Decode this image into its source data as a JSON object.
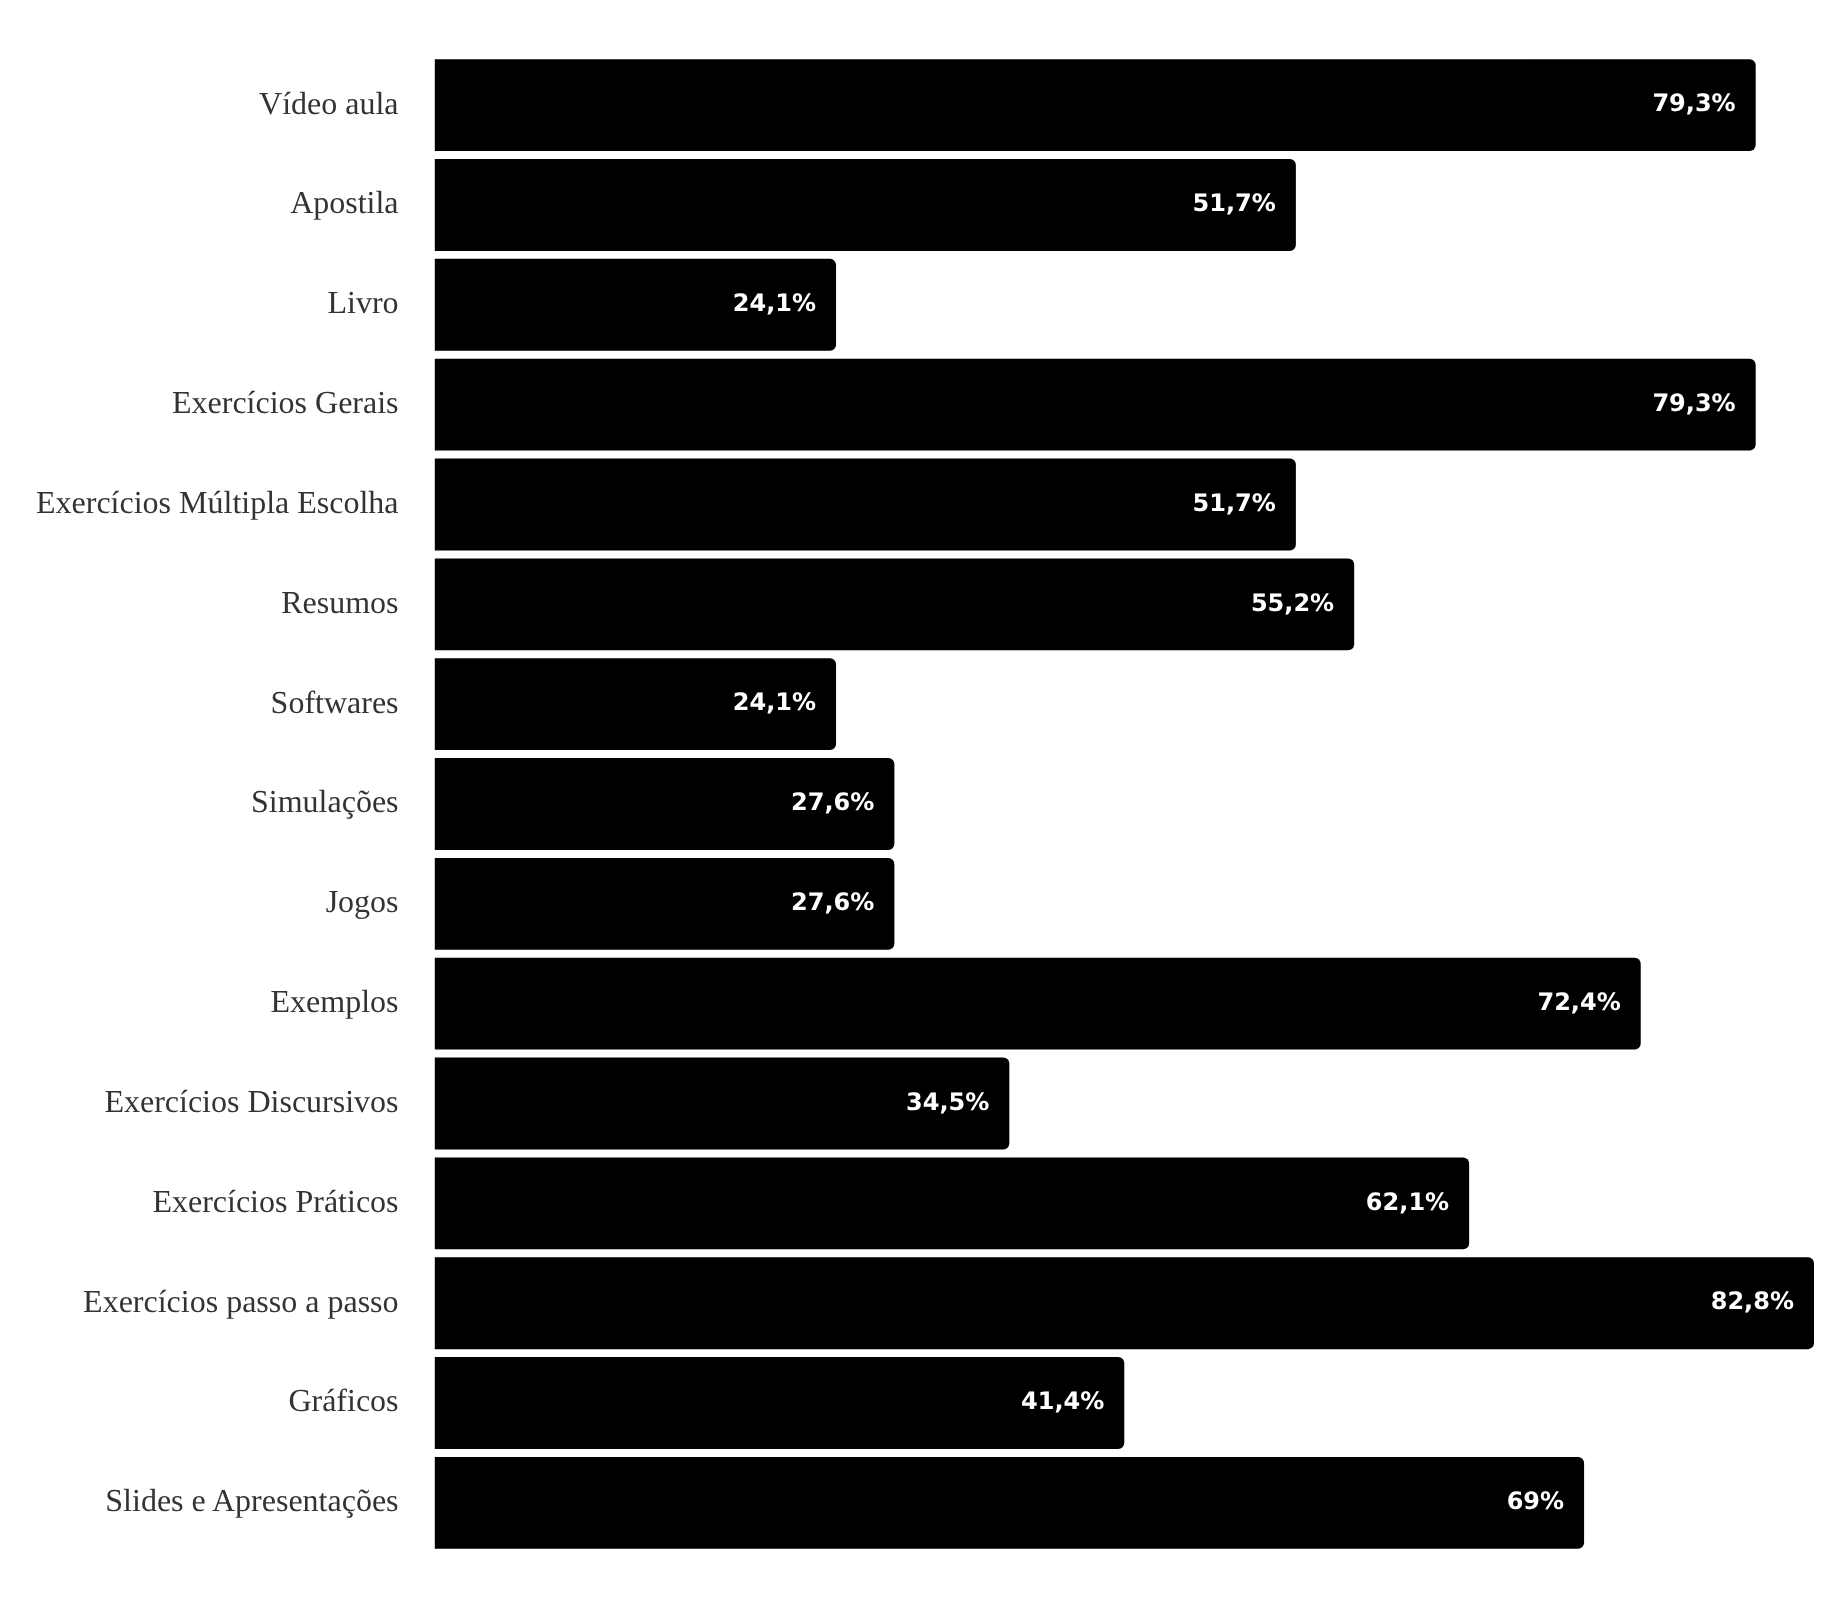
{
  "chart_data": {
    "type": "bar",
    "orientation": "horizontal",
    "categories": [
      "Vídeo aula",
      "Apostila",
      "Livro",
      "Exercícios Gerais",
      "Exercícios Múltipla Escolha",
      "Resumos",
      "Softwares",
      "Simulações",
      "Jogos",
      "Exemplos",
      "Exercícios Discursivos",
      "Exercícios Práticos",
      "Exercícios passo a passo",
      "Gráficos",
      "Slides e Apresentações"
    ],
    "values": [
      79.3,
      51.7,
      24.1,
      79.3,
      51.7,
      55.2,
      24.1,
      27.6,
      27.6,
      72.4,
      34.5,
      62.1,
      82.8,
      41.4,
      69
    ],
    "value_labels": [
      "79,3%",
      "51,7%",
      "24,1%",
      "79,3%",
      "51,7%",
      "55,2%",
      "24,1%",
      "27,6%",
      "27,6%",
      "72,4%",
      "34,5%",
      "62,1%",
      "82,8%",
      "41,4%",
      "69%"
    ],
    "color": "#000000"
  }
}
